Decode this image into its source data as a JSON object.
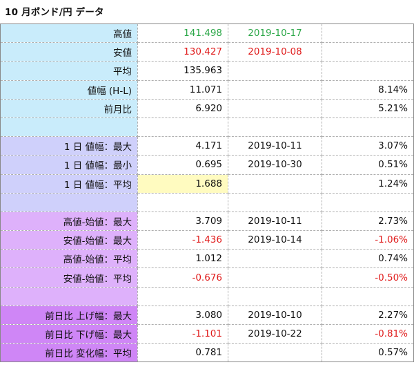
{
  "title": "10 月ポンド/円 データ",
  "colors": {
    "section1_bg": "#c9ecfb",
    "section2_bg": "#cfd0fb",
    "section3_bg": "#deb1fb",
    "section4_bg": "#cf86f6",
    "highlight_bg": "#fffbc0",
    "positive_text": "#2ea84a",
    "negative_text": "#e01b1b"
  },
  "rows": [
    {
      "label": "高値",
      "value": "141.498",
      "date": "2019-10-17",
      "pct": "",
      "section": "s1",
      "value_color": "green",
      "date_color": "green"
    },
    {
      "label": "安値",
      "value": "130.427",
      "date": "2019-10-08",
      "pct": "",
      "section": "s1",
      "value_color": "red",
      "date_color": "red"
    },
    {
      "label": "平均",
      "value": "135.963",
      "date": "",
      "pct": "",
      "section": "s1"
    },
    {
      "label": "値幅 (H-L)",
      "value": "11.071",
      "date": "",
      "pct": "8.14%",
      "section": "s1"
    },
    {
      "label": "前月比",
      "value": "6.920",
      "date": "",
      "pct": "5.21%",
      "section": "s1"
    },
    {
      "label": "",
      "value": "",
      "date": "",
      "pct": "",
      "section": "s1"
    },
    {
      "label": "1 日 値幅：最大",
      "value": "4.171",
      "date": "2019-10-11",
      "pct": "3.07%",
      "section": "s2"
    },
    {
      "label": "1 日 値幅：最小",
      "value": "0.695",
      "date": "2019-10-30",
      "pct": "0.51%",
      "section": "s2"
    },
    {
      "label": "1 日 値幅：平均",
      "value": "1.688",
      "date": "",
      "pct": "1.24%",
      "section": "s2",
      "value_highlight": true
    },
    {
      "label": "",
      "value": "",
      "date": "",
      "pct": "",
      "section": "s2"
    },
    {
      "label": "高値-始値：最大",
      "value": "3.709",
      "date": "2019-10-11",
      "pct": "2.73%",
      "section": "s3"
    },
    {
      "label": "安値-始値：最大",
      "value": "-1.436",
      "date": "2019-10-14",
      "pct": "-1.06%",
      "section": "s3",
      "value_color": "red",
      "pct_color": "red"
    },
    {
      "label": "高値-始値：平均",
      "value": "1.012",
      "date": "",
      "pct": "0.74%",
      "section": "s3"
    },
    {
      "label": "安値-始値：平均",
      "value": "-0.676",
      "date": "",
      "pct": "-0.50%",
      "section": "s3",
      "value_color": "red",
      "pct_color": "red"
    },
    {
      "label": "",
      "value": "",
      "date": "",
      "pct": "",
      "section": "s3"
    },
    {
      "label": "前日比 上げ幅：最大",
      "value": "3.080",
      "date": "2019-10-10",
      "pct": "2.27%",
      "section": "s4"
    },
    {
      "label": "前日比 下げ幅：最大",
      "value": "-1.101",
      "date": "2019-10-22",
      "pct": "-0.81%",
      "section": "s4",
      "value_color": "red",
      "pct_color": "red"
    },
    {
      "label": "前日比 変化幅：平均",
      "value": "0.781",
      "date": "",
      "pct": "0.57%",
      "section": "s4"
    }
  ]
}
